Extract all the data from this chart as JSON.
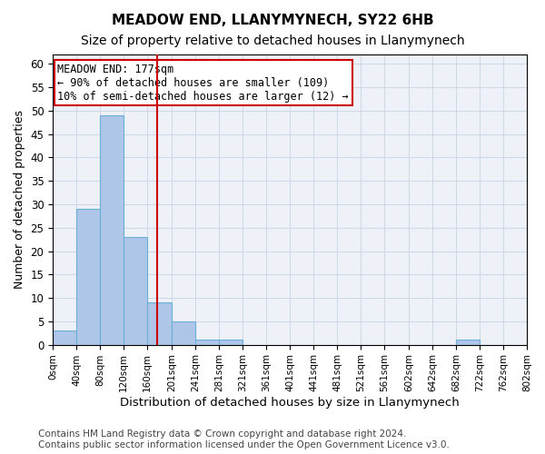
{
  "title": "MEADOW END, LLANYMYNECH, SY22 6HB",
  "subtitle": "Size of property relative to detached houses in Llanymynech",
  "xlabel": "Distribution of detached houses by size in Llanymynech",
  "ylabel": "Number of detached properties",
  "bar_edges": [
    0,
    40,
    80,
    120,
    160,
    201,
    241,
    281,
    321,
    361,
    401,
    441,
    481,
    521,
    561,
    602,
    642,
    682,
    722,
    762,
    802
  ],
  "bar_heights": [
    3,
    29,
    49,
    23,
    9,
    5,
    1,
    1,
    0,
    0,
    0,
    0,
    0,
    0,
    0,
    0,
    0,
    1,
    0,
    0
  ],
  "bar_color": "#aec6e8",
  "bar_edgecolor": "#6baed6",
  "vline_x": 177,
  "vline_color": "#cc0000",
  "annotation_box_text": "MEADOW END: 177sqm\n← 90% of detached houses are smaller (109)\n10% of semi-detached houses are larger (12) →",
  "annotation_box_edgecolor": "#cc0000",
  "annotation_box_facecolor": "#ffffff",
  "ylim": [
    0,
    62
  ],
  "yticks": [
    0,
    5,
    10,
    15,
    20,
    25,
    30,
    35,
    40,
    45,
    50,
    55,
    60
  ],
  "tick_labels": [
    "0sqm",
    "40sqm",
    "80sqm",
    "120sqm",
    "160sqm",
    "201sqm",
    "241sqm",
    "281sqm",
    "321sqm",
    "361sqm",
    "401sqm",
    "441sqm",
    "481sqm",
    "521sqm",
    "561sqm",
    "602sqm",
    "642sqm",
    "682sqm",
    "722sqm",
    "762sqm",
    "802sqm"
  ],
  "footnote": "Contains HM Land Registry data © Crown copyright and database right 2024.\nContains public sector information licensed under the Open Government Licence v3.0.",
  "grid_color": "#d0d8e8",
  "bg_color": "#eef2f8",
  "title_fontsize": 11,
  "subtitle_fontsize": 10,
  "annotation_fontsize": 8.5,
  "footnote_fontsize": 7.5
}
